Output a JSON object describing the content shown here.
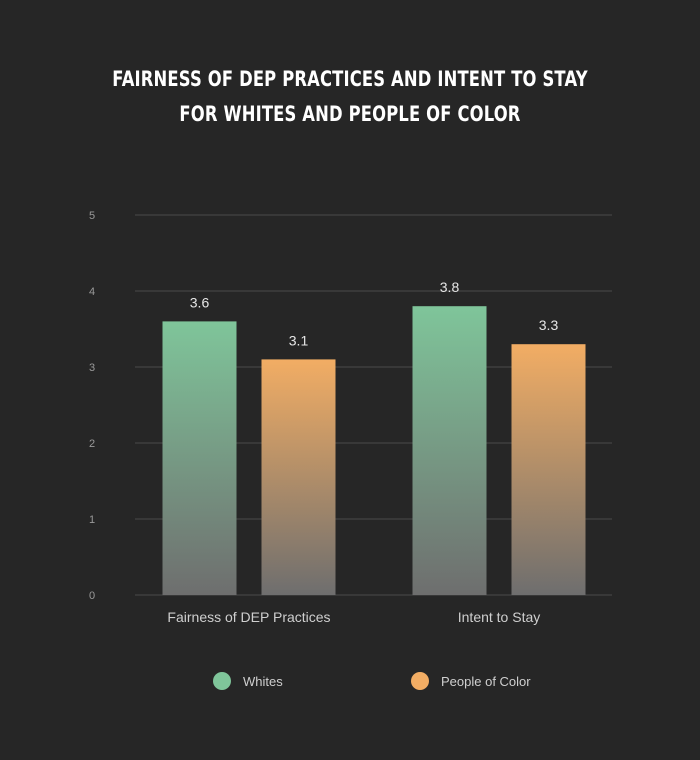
{
  "chart_data": {
    "type": "bar",
    "title": "Fairness of DEP Practices and Intent to Stay for Whites and People of Color",
    "categories": [
      "Fairness of DEP Practices",
      "Intent to Stay"
    ],
    "series": [
      {
        "name": "Whites",
        "values": [
          3.6,
          3.8
        ],
        "color": "#7fc59a"
      },
      {
        "name": "People of Color",
        "values": [
          3.1,
          3.3
        ],
        "color": "#f2ad64"
      }
    ],
    "data_labels": [
      [
        "3.6",
        "3.8"
      ],
      [
        "3.1",
        "3.3"
      ]
    ],
    "ylim": [
      0,
      5
    ],
    "yticks": [
      "0",
      "1",
      "2",
      "3",
      "4",
      "5"
    ],
    "xlabel": "",
    "ylabel": "",
    "grid": true,
    "legend_position": "bottom"
  },
  "colors": {
    "background": "#262626",
    "gridline": "#4a4a4a",
    "bar_bottom": "#6e6e6e"
  }
}
